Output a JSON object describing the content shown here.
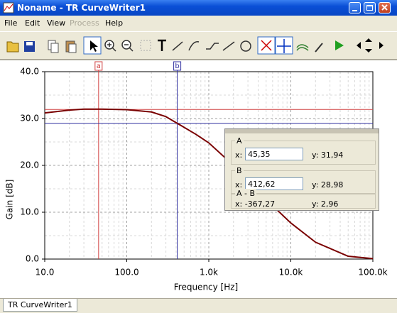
{
  "window": {
    "title": "Noname - TR CurveWriter1",
    "menu": [
      "File",
      "Edit",
      "View",
      "Process",
      "Help"
    ],
    "tab": "TR CurveWriter1"
  },
  "chart_data": {
    "type": "line",
    "xlabel": "Frequency [Hz]",
    "ylabel": "Gain [dB]",
    "x": [
      10,
      20,
      30,
      50,
      100,
      200,
      300,
      412.62,
      700,
      1000,
      2000,
      3000,
      5000,
      10000,
      20000,
      50000,
      100000
    ],
    "series": [
      {
        "color": "#7a0000",
        "values": [
          31.2,
          31.8,
          32,
          32,
          31.9,
          31.4,
          30.4,
          28.98,
          26.6,
          24.8,
          20,
          17,
          12.7,
          7.7,
          3.6,
          0.6,
          0.1
        ]
      }
    ],
    "xlim": [
      10,
      100000
    ],
    "ylim": [
      0,
      40
    ],
    "xscale": "log",
    "xticks": [
      {
        "value": 10,
        "label": "10.0"
      },
      {
        "value": 100,
        "label": "100.0"
      },
      {
        "value": 1000,
        "label": "1.0k"
      },
      {
        "value": 10000,
        "label": "10.0k"
      },
      {
        "value": 100000,
        "label": "100.0k"
      }
    ],
    "yticks": [
      {
        "value": 0,
        "label": "0.0"
      },
      {
        "value": 10,
        "label": "10.0"
      },
      {
        "value": 20,
        "label": "20.0"
      },
      {
        "value": 30,
        "label": "30.0"
      },
      {
        "value": 40,
        "label": "40.0"
      }
    ],
    "grid": true,
    "cursors": [
      {
        "label": "a",
        "color": "#d04040",
        "x": 45.35,
        "y": 31.94
      },
      {
        "label": "b",
        "color": "#3030a0",
        "x": 412.62,
        "y": 28.98
      }
    ]
  },
  "cursor_panel": {
    "sections": [
      {
        "title": "A",
        "x_prefix": "x:",
        "x": "45,35",
        "y": "y: 31,94"
      },
      {
        "title": "B",
        "x_prefix": "x:",
        "x": "412,62",
        "y": "y: 28,98"
      }
    ],
    "diff": {
      "title": "A - B",
      "x": "x: -367,27",
      "y": "y: 2,96"
    }
  }
}
